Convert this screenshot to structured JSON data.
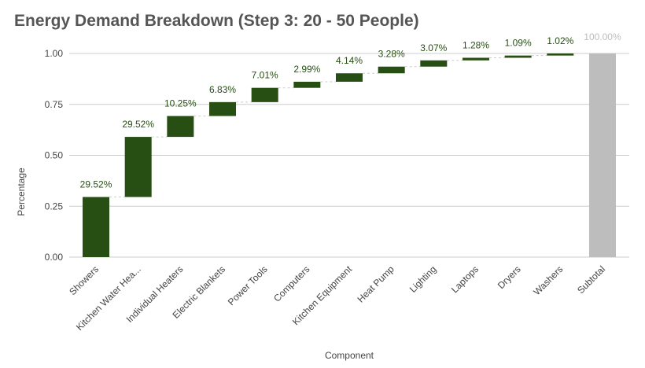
{
  "chart_data": {
    "type": "waterfall",
    "title": "Energy Demand Breakdown (Step 3: 20 - 50 People)",
    "x_label": "Component",
    "y_label": "Percentage",
    "categories": [
      "Showers",
      "Kitchen Water Hea...",
      "Individual Heaters",
      "Electric Blankets",
      "Power Tools",
      "Computers",
      "Kitchen Equipment",
      "Heat Pump",
      "Lighting",
      "Laptops",
      "Dryers",
      "Washers"
    ],
    "values": [
      0.2952,
      0.2952,
      0.1025,
      0.0683,
      0.0701,
      0.0299,
      0.0414,
      0.0328,
      0.0307,
      0.0128,
      0.0109,
      0.0102
    ],
    "value_labels": [
      "29.52%",
      "29.52%",
      "10.25%",
      "6.83%",
      "7.01%",
      "2.99%",
      "4.14%",
      "3.28%",
      "3.07%",
      "1.28%",
      "1.09%",
      "1.02%"
    ],
    "color": "#274e13",
    "total_category": "Subtotal",
    "total_value": 1,
    "total_value_label": "100.00%",
    "total_color": "#bdbdbd",
    "ylim": [
      0,
      1
    ],
    "yticks": [
      {
        "value": 0,
        "label": "0.00"
      },
      {
        "value": 0.25,
        "label": "0.25"
      },
      {
        "value": 0.5,
        "label": "0.50"
      },
      {
        "value": 0.75,
        "label": "0.75"
      },
      {
        "value": 1,
        "label": "1.00"
      }
    ],
    "grid": true
  }
}
